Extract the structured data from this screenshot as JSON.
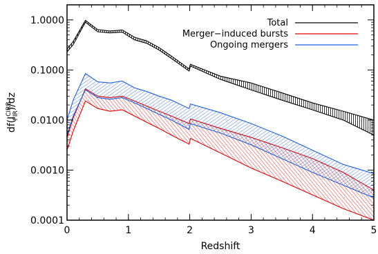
{
  "chart_data": {
    "type": "line",
    "title": "",
    "xlabel": "Redshift",
    "ylabel": {
      "prefix": "df(I",
      "superscript": "CIRB",
      "subscript": "FIR",
      "suffix": ")/dz"
    },
    "xlim": [
      0,
      5
    ],
    "ylim": [
      0.0001,
      2.0
    ],
    "y_scale": "log",
    "grid": false,
    "legend_position": "top-right",
    "x_ticks": [
      0,
      1,
      2,
      3,
      4,
      5
    ],
    "x_tick_labels": [
      "0",
      "1",
      "2",
      "3",
      "4",
      "5"
    ],
    "y_ticks": [
      1.0,
      0.1,
      0.01,
      0.001,
      0.0001
    ],
    "y_tick_labels": [
      "1.0000",
      "0.1000",
      "0.0100",
      "0.0010",
      "0.0001"
    ],
    "series": [
      {
        "name": "Total",
        "color": "#000000",
        "hatch": "vertical",
        "x": [
          0,
          0.1,
          0.3,
          0.5,
          0.7,
          0.9,
          1.1,
          1.3,
          1.5,
          1.7,
          1.99,
          2.01,
          2.5,
          3.0,
          3.5,
          4.0,
          4.5,
          5.0
        ],
        "lower": [
          0.23,
          0.32,
          0.9,
          0.58,
          0.55,
          0.57,
          0.4,
          0.34,
          0.25,
          0.17,
          0.095,
          0.12,
          0.065,
          0.04,
          0.025,
          0.016,
          0.01,
          0.005
        ],
        "upper": [
          0.26,
          0.37,
          0.98,
          0.64,
          0.6,
          0.63,
          0.45,
          0.38,
          0.28,
          0.19,
          0.105,
          0.13,
          0.075,
          0.055,
          0.035,
          0.022,
          0.015,
          0.01
        ]
      },
      {
        "name": "Merger−induced bursts",
        "color": "#e00000",
        "hatch": "diagonal-down",
        "x": [
          0,
          0.1,
          0.3,
          0.5,
          0.7,
          0.9,
          1.1,
          1.3,
          1.5,
          1.7,
          1.99,
          2.01,
          2.5,
          3.0,
          3.5,
          4.0,
          4.5,
          5.0
        ],
        "lower": [
          0.0025,
          0.006,
          0.024,
          0.017,
          0.015,
          0.016,
          0.012,
          0.009,
          0.0068,
          0.005,
          0.0033,
          0.0043,
          0.0022,
          0.0011,
          0.0006,
          0.00032,
          0.00017,
          0.0001
        ],
        "upper": [
          0.0045,
          0.011,
          0.042,
          0.03,
          0.028,
          0.03,
          0.024,
          0.019,
          0.015,
          0.012,
          0.0085,
          0.0105,
          0.0068,
          0.0045,
          0.0028,
          0.0017,
          0.0009,
          0.0004
        ]
      },
      {
        "name": "Ongoing mergers",
        "color": "#1f5fe0",
        "hatch": "diagonal-up",
        "x": [
          0,
          0.1,
          0.3,
          0.5,
          0.7,
          0.9,
          1.1,
          1.3,
          1.5,
          1.7,
          1.99,
          2.01,
          2.5,
          3.0,
          3.5,
          4.0,
          4.5,
          5.0
        ],
        "lower": [
          0.005,
          0.012,
          0.04,
          0.028,
          0.026,
          0.028,
          0.022,
          0.017,
          0.013,
          0.01,
          0.0065,
          0.0085,
          0.0055,
          0.0032,
          0.0017,
          0.0009,
          0.0005,
          0.00028
        ],
        "upper": [
          0.01,
          0.025,
          0.085,
          0.058,
          0.055,
          0.06,
          0.044,
          0.037,
          0.03,
          0.025,
          0.017,
          0.021,
          0.014,
          0.0085,
          0.0048,
          0.0025,
          0.0013,
          0.00085
        ]
      }
    ]
  }
}
